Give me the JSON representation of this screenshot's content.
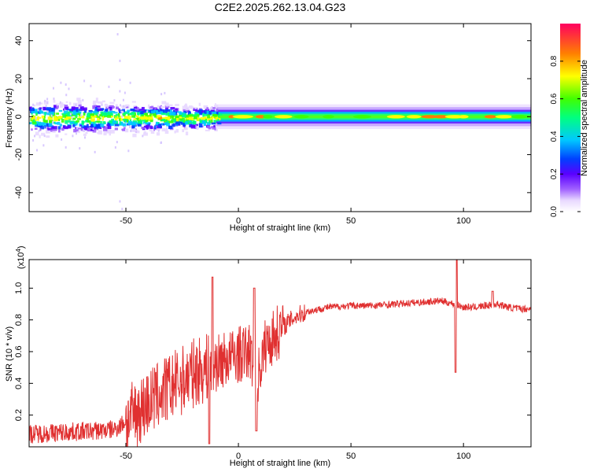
{
  "title": "C2E2.2025.262.13.04.G23",
  "chart_data": [
    {
      "type": "heatmap",
      "xlabel": "Height of straight line (km)",
      "ylabel": "Frequency (Hz)",
      "xlim": [
        -93,
        130
      ],
      "ylim": [
        -50,
        49
      ],
      "xticks": [
        -50,
        0,
        50,
        100
      ],
      "yticks": [
        -40,
        -20,
        0,
        20,
        40
      ],
      "xtick_labels": [
        "-50",
        "0",
        "50",
        "100"
      ],
      "ytick_labels": [
        "-40",
        "-20",
        "0",
        "20",
        "40"
      ],
      "colorbar": {
        "label": "Normalized spectral amplitude",
        "range": [
          0,
          1
        ],
        "ticks": [
          "0.0",
          "0.2",
          "0.4",
          "0.6",
          "0.8"
        ],
        "tick_values": [
          0,
          0.2,
          0.4,
          0.6,
          0.8
        ]
      },
      "noisy_region": {
        "x_range": [
          -93,
          -15
        ],
        "freq_halfwidth_hz": 7
      },
      "steady_region": {
        "x_range": [
          -10,
          130
        ],
        "freq_halfwidth_hz": 3
      }
    },
    {
      "type": "line",
      "xlabel": "Height of straight line (km)",
      "ylabel": "SNR (10 * v/v)",
      "scale_label": "(x10",
      "scale_exponent": "4",
      "xlim": [
        -93,
        130
      ],
      "ylim": [
        0,
        1.18
      ],
      "xticks": [
        -50,
        0,
        50,
        100
      ],
      "yticks": [
        0.2,
        0.4,
        0.6,
        0.8,
        1.0
      ],
      "xtick_labels": [
        "-50",
        "0",
        "50",
        "100"
      ],
      "ytick_labels": [
        "0.2",
        "0.4",
        "0.6",
        "0.8",
        "1.0"
      ],
      "color": "#e03030",
      "series": [
        {
          "name": "SNR",
          "x": [
            -93,
            -80,
            -65,
            -55,
            -48,
            -40,
            -32,
            -25,
            -18,
            -12,
            -8,
            -4,
            0,
            5,
            8,
            12,
            16,
            20,
            25,
            30,
            40,
            50,
            60,
            70,
            80,
            90,
            96,
            100,
            105,
            110,
            115,
            120,
            125,
            130
          ],
          "values": [
            0.08,
            0.09,
            0.1,
            0.11,
            0.18,
            0.28,
            0.36,
            0.42,
            0.48,
            0.5,
            0.54,
            0.56,
            0.58,
            0.6,
            0.4,
            0.64,
            0.7,
            0.76,
            0.82,
            0.85,
            0.88,
            0.89,
            0.89,
            0.9,
            0.91,
            0.92,
            0.9,
            0.88,
            0.88,
            0.89,
            0.9,
            0.88,
            0.87,
            0.87
          ]
        }
      ]
    }
  ]
}
